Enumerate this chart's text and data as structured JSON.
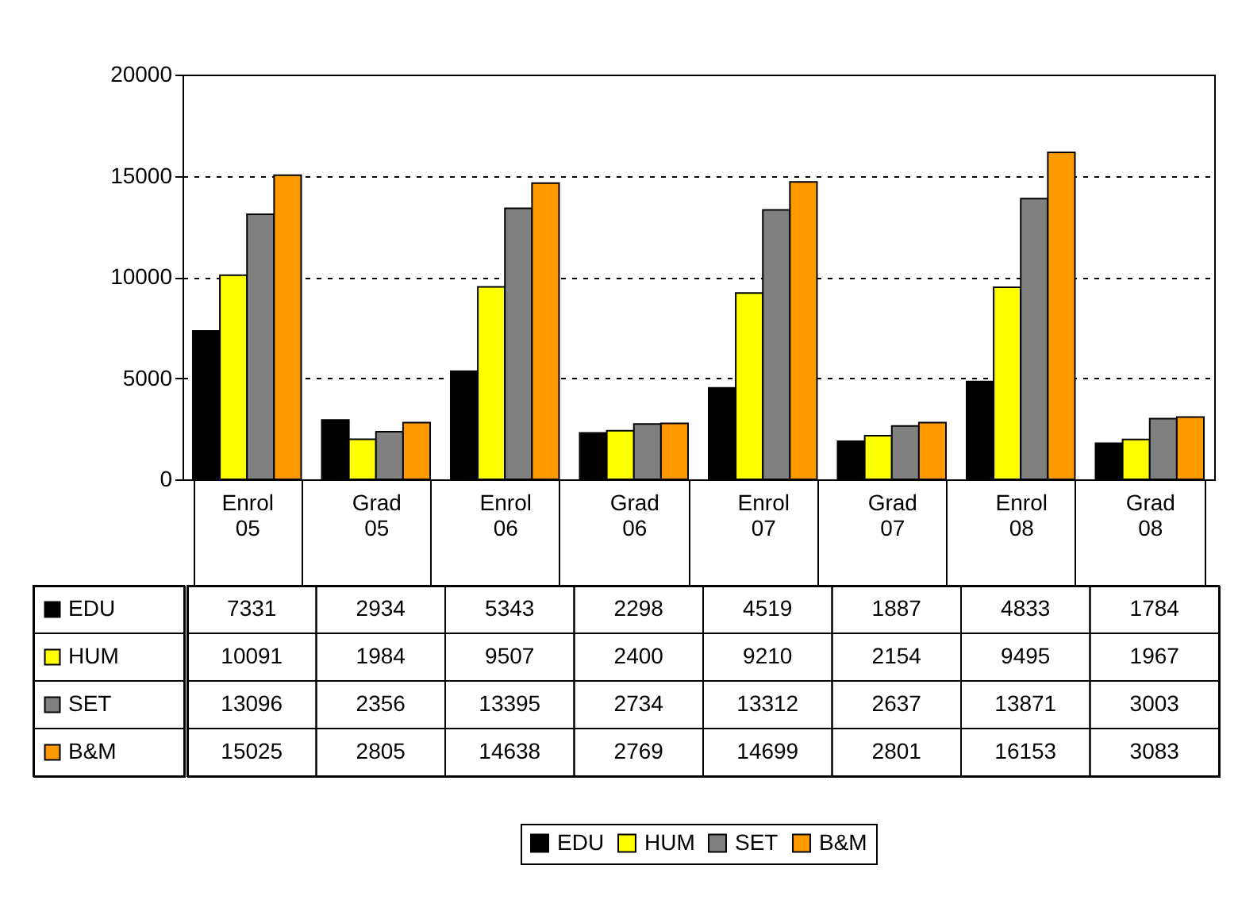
{
  "chart_data": {
    "type": "bar",
    "categories": [
      "Enrol 05",
      "Grad 05",
      "Enrol 06",
      "Grad 06",
      "Enrol 07",
      "Grad 07",
      "Enrol 08",
      "Grad 08"
    ],
    "series": [
      {
        "name": "EDU",
        "color": "#000000",
        "values": [
          7331,
          2934,
          5343,
          2298,
          4519,
          1887,
          4833,
          1784
        ]
      },
      {
        "name": "HUM",
        "color": "#ffff00",
        "values": [
          10091,
          1984,
          9507,
          2400,
          9210,
          2154,
          9495,
          1967
        ]
      },
      {
        "name": "SET",
        "color": "#808080",
        "values": [
          13096,
          2356,
          13395,
          2734,
          13312,
          2637,
          13871,
          3003
        ]
      },
      {
        "name": "B&M",
        "color": "#ff9900",
        "values": [
          15025,
          2805,
          14638,
          2769,
          14699,
          2801,
          16153,
          3083
        ]
      }
    ],
    "ylim": [
      0,
      20000
    ],
    "yticks": [
      0,
      5000,
      10000,
      15000,
      20000
    ],
    "grid": "y",
    "legend": "bottom",
    "data_labels": true
  }
}
